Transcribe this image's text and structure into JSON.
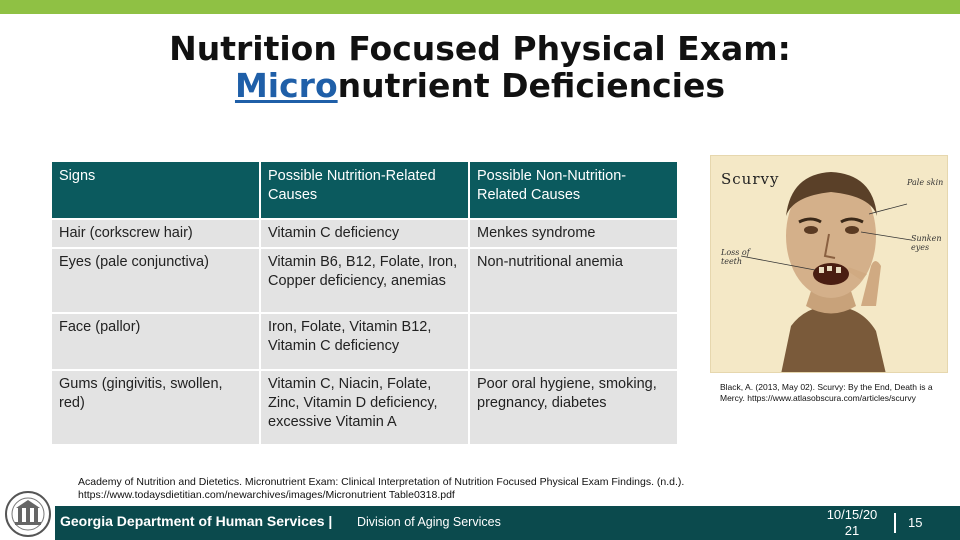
{
  "slide": {
    "title_line1": "Nutrition Focused Physical Exam:",
    "title_micro": "Micro",
    "title_rest": "nutrient Deficiencies"
  },
  "table": {
    "headers": [
      "Signs",
      "Possible Nutrition-Related Causes",
      "Possible Non-Nutrition-Related Causes"
    ],
    "rows": [
      [
        "Hair (corkscrew hair)",
        "Vitamin C deficiency",
        "Menkes syndrome"
      ],
      [
        "Eyes (pale conjunctiva)",
        "Vitamin B6, B12, Folate, Iron, Copper deficiency, anemias",
        "Non-nutritional anemia"
      ],
      [
        "Face (pallor)",
        "Iron, Folate, Vitamin B12, Vitamin C deficiency",
        ""
      ],
      [
        "Gums (gingivitis, swollen, red)",
        "Vitamin C, Niacin, Folate, Zinc, Vitamin D deficiency, excessive Vitamin A",
        "Poor oral hygiene, smoking, pregnancy, diabetes"
      ]
    ]
  },
  "illustration": {
    "title": "Scurvy",
    "annotations": [
      "Pale skin",
      "Loss of teeth",
      "Sunken eyes"
    ],
    "citation": "Black, A. (2013, May 02). Scurvy: By the End, Death is a Mercy. https://www.atlasobscura.com/articles/scurvy"
  },
  "citation_main": "Academy of Nutrition and Dietetics. Micronutrient Exam: Clinical Interpretation of Nutrition Focused Physical Exam Findings. (n.d.). https://www.todaysdietitian.com/newarchives/images/Micronutrient Table0318.pdf",
  "footer": {
    "org": "Georgia Department of Human Services |",
    "division": "Division of Aging Services",
    "date": "10/15/20 21",
    "page": "15"
  },
  "colors": {
    "accent_green": "#8fc144",
    "header_teal": "#0b5a5e",
    "footer_teal": "#0b4a4d",
    "title_blue": "#1f5fa8",
    "cell_gray": "#e3e3e3"
  }
}
